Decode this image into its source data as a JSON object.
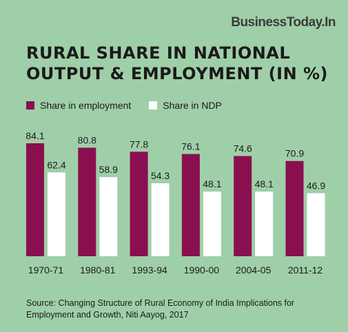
{
  "brand": "BusinessToday.In",
  "title_line1": "RURAL SHARE IN NATIONAL",
  "title_line2": "OUTPUT & EMPLOYMENT (IN %)",
  "source": "Source: Changing Structure of Rural Economy of India Implications for Employment and Growth, Niti Aayog, 2017",
  "colors": {
    "employment": "#8a0f4f",
    "ndp": "#ffffff",
    "background": "#9fcfa8"
  },
  "chart_data": {
    "type": "bar",
    "categories": [
      "1970-71",
      "1980-81",
      "1993-94",
      "1990-00",
      "2004-05",
      "2011-12"
    ],
    "series": [
      {
        "name": "Share in employment",
        "values": [
          84.1,
          80.8,
          77.8,
          76.1,
          74.6,
          70.9
        ]
      },
      {
        "name": "Share in NDP",
        "values": [
          62.4,
          58.9,
          54.3,
          48.1,
          48.1,
          46.9
        ]
      }
    ],
    "data_labels": [
      [
        "84.1",
        "80.8",
        "77.8",
        "76.1",
        "74.6",
        "70.9"
      ],
      [
        "62.4",
        "58.9",
        "54.3",
        "48.1",
        "48.1",
        "46.9"
      ]
    ],
    "ylim": [
      0,
      84.1
    ],
    "legend": "top-left",
    "grid": false
  }
}
